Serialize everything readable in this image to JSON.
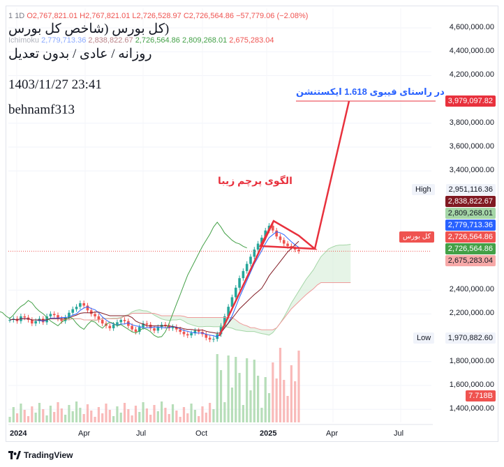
{
  "chart_data": {
    "type": "candlestick",
    "symbol_legend": {
      "symbol": "1",
      "interval": "1D",
      "open": "O2,767,821.01",
      "high": "H2,767,821.01",
      "low": "L2,726,528.97",
      "close": "C2,726,564.86",
      "change": "−57,779.06 (−2.08%)"
    },
    "ichimoku_legend": {
      "name": "Ichimoku",
      "values": [
        "2,779,713.36",
        "2,838,822.67",
        "2,726,564.86",
        "2,809,268.01",
        "2,675,283.04"
      ]
    },
    "overlay_text": {
      "title": "(کل بورس (شاخص کل بورس",
      "subtitle": "روزانه / عادی / بدون تعدیل",
      "datetime": "1403/11/27 23:41",
      "author": "behnamf313"
    },
    "annotations": {
      "pattern_label": "الگوی پرچم زیبا",
      "target_label": "در راستای فیبوی 1.618 ایکستنشن",
      "target_value": "3,979,097.82"
    },
    "y_ticks": [
      "4,600,000.00",
      "4,400,000.00",
      "4,200,000.00",
      "3,800,000.00",
      "3,600,000.00",
      "3,400,000.00",
      "2,400,000.00",
      "2,200,000.00",
      "1,800,000.00",
      "1,600,000.00",
      "1,400,000.00"
    ],
    "y_tick_values": [
      4600000,
      4400000,
      4200000,
      3800000,
      3600000,
      3400000,
      2400000,
      2200000,
      1800000,
      1600000,
      1400000
    ],
    "x_ticks": [
      "2024",
      "Apr",
      "Jul",
      "Oct",
      "2025",
      "Apr",
      "Jul"
    ],
    "price_labels": {
      "high_label": "High",
      "high_value": "2,951,116.36",
      "low_label": "Low",
      "low_value": "1,970,882.60",
      "series_tag": "کل بورس",
      "kijun": "2,838,822.67",
      "span_a": "2,809,268.01",
      "tenkan": "2,779,713.36",
      "close": "2,726,564.86",
      "chikou": "2,726,564.86",
      "span_b": "2,675,283.04",
      "volume": "7.718B"
    },
    "close_series": [
      2150000,
      2160000,
      2140000,
      2180000,
      2170000,
      2150000,
      2120000,
      2140000,
      2160000,
      2130000,
      2180000,
      2200000,
      2190000,
      2160000,
      2140000,
      2170000,
      2210000,
      2240000,
      2260000,
      2290000,
      2270000,
      2230000,
      2200000,
      2180000,
      2150000,
      2120000,
      2100000,
      2080000,
      2110000,
      2130000,
      2150000,
      2140000,
      2100000,
      2070000,
      2050000,
      2090000,
      2120000,
      2110000,
      2080000,
      2060000,
      2090000,
      2110000,
      2100000,
      2080000,
      2090000,
      2070000,
      2050000,
      2030000,
      2020000,
      2040000,
      2060000,
      2050000,
      2030000,
      2000000,
      1985000,
      1990000,
      2030000,
      2100000,
      2180000,
      2260000,
      2340000,
      2420000,
      2500000,
      2560000,
      2620000,
      2680000,
      2740000,
      2790000,
      2840000,
      2900000,
      2940000,
      2900000,
      2850000,
      2820000,
      2790000,
      2770000,
      2760000,
      2740000,
      2726564
    ],
    "ylim": [
      1300000,
      4700000
    ],
    "colors": {
      "up": "#26a69a",
      "down": "#ef5350",
      "tenkan": "#2962ff",
      "kijun": "#801922",
      "chikou": "#43a047",
      "span_a": "#a5d6a7",
      "span_b": "#ef9a9a",
      "annotation": "#e8313d",
      "target_text": "#2962ff"
    }
  }
}
